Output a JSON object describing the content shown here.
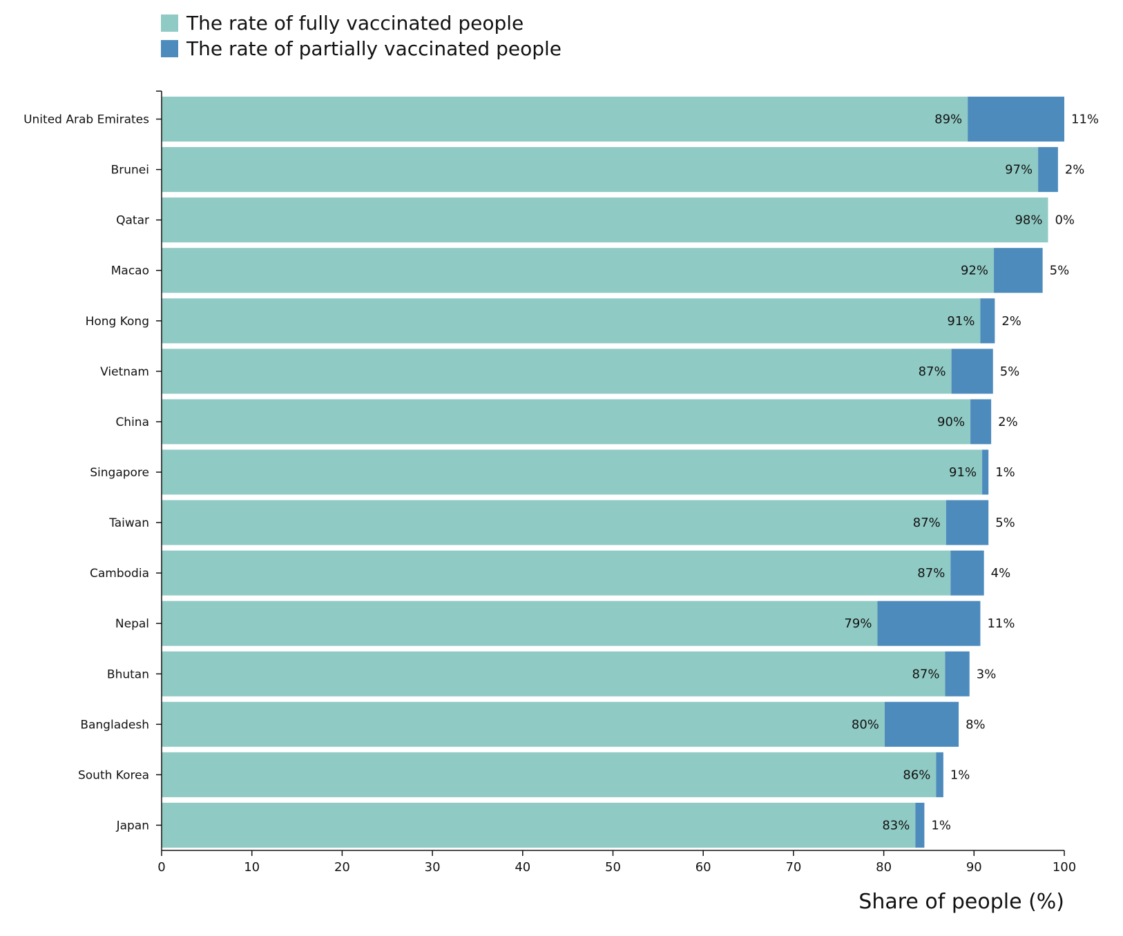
{
  "colors": {
    "fully": "#90cac4",
    "partially": "#4d8bbd",
    "axis": "#111111"
  },
  "chart_data": {
    "type": "bar",
    "orientation": "horizontal",
    "stacked": true,
    "categories": [
      "United Arab Emirates",
      "Brunei",
      "Qatar",
      "Macao",
      "Hong Kong",
      "Vietnam",
      "China",
      "Singapore",
      "Taiwan",
      "Cambodia",
      "Nepal",
      "Bhutan",
      "Bangladesh",
      "South Korea",
      "Japan"
    ],
    "series": [
      {
        "name": "The rate of fully vaccinated people",
        "color": "#90cac4",
        "values": [
          89.3,
          97.1,
          98.2,
          92.2,
          90.7,
          87.5,
          89.6,
          90.9,
          86.9,
          87.4,
          79.3,
          86.8,
          80.1,
          85.8,
          83.5
        ],
        "labels": [
          "89%",
          "97%",
          "98%",
          "92%",
          "91%",
          "87%",
          "90%",
          "91%",
          "87%",
          "87%",
          "79%",
          "87%",
          "80%",
          "86%",
          "83%"
        ]
      },
      {
        "name": "The rate of partially vaccinated people",
        "color": "#4d8bbd",
        "values": [
          10.7,
          2.2,
          0.0,
          5.4,
          1.6,
          4.6,
          2.3,
          0.7,
          4.7,
          3.7,
          11.4,
          2.7,
          8.2,
          0.8,
          1.0
        ],
        "labels": [
          "11%",
          "2%",
          "0%",
          "5%",
          "2%",
          "5%",
          "2%",
          "1%",
          "5%",
          "4%",
          "11%",
          "3%",
          "8%",
          "1%",
          "1%"
        ]
      }
    ],
    "xlim": [
      0,
      100
    ],
    "xticks": [
      0,
      10,
      20,
      30,
      40,
      50,
      60,
      70,
      80,
      90,
      100
    ],
    "xlabel": "Share of people (%)",
    "ylabel": "",
    "title": "",
    "grid": false,
    "legend_position": "top-left"
  }
}
